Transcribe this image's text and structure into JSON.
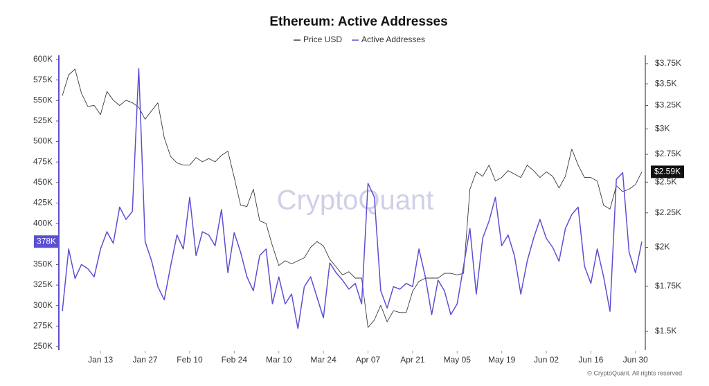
{
  "chart_data": {
    "type": "line",
    "title": "Ethereum: Active Addresses",
    "watermark": "CryptoQuant",
    "source": "© CryptoQuant. All rights reserved",
    "x": [
      "Jan 01",
      "Jan 03",
      "Jan 05",
      "Jan 07",
      "Jan 09",
      "Jan 11",
      "Jan 13",
      "Jan 15",
      "Jan 17",
      "Jan 19",
      "Jan 21",
      "Jan 23",
      "Jan 25",
      "Jan 27",
      "Jan 29",
      "Jan 31",
      "Feb 02",
      "Feb 04",
      "Feb 06",
      "Feb 08",
      "Feb 10",
      "Feb 12",
      "Feb 14",
      "Feb 16",
      "Feb 18",
      "Feb 20",
      "Feb 22",
      "Feb 24",
      "Feb 26",
      "Feb 28",
      "Mar 02",
      "Mar 04",
      "Mar 06",
      "Mar 08",
      "Mar 10",
      "Mar 12",
      "Mar 14",
      "Mar 16",
      "Mar 18",
      "Mar 20",
      "Mar 22",
      "Mar 24",
      "Mar 26",
      "Mar 28",
      "Mar 30",
      "Apr 01",
      "Apr 03",
      "Apr 05",
      "Apr 07",
      "Apr 09",
      "Apr 11",
      "Apr 13",
      "Apr 15",
      "Apr 17",
      "Apr 19",
      "Apr 21",
      "Apr 23",
      "Apr 25",
      "Apr 27",
      "Apr 29",
      "May 01",
      "May 03",
      "May 05",
      "May 07",
      "May 09",
      "May 11",
      "May 13",
      "May 15",
      "May 17",
      "May 19",
      "May 21",
      "May 23",
      "May 25",
      "May 27",
      "May 29",
      "May 31",
      "Jun 02",
      "Jun 04",
      "Jun 06",
      "Jun 08",
      "Jun 10",
      "Jun 12",
      "Jun 14",
      "Jun 16",
      "Jun 18",
      "Jun 20",
      "Jun 22",
      "Jun 24",
      "Jun 26",
      "Jun 28",
      "Jun 30",
      "Jul 02"
    ],
    "xticks": [
      "Jan 13",
      "Jan 27",
      "Feb 10",
      "Feb 24",
      "Mar 10",
      "Mar 24",
      "Apr 07",
      "Apr 21",
      "May 05",
      "May 19",
      "Jun 02",
      "Jun 16",
      "Jun 30"
    ],
    "series": [
      {
        "name": "Price USD",
        "color": "#3a3a3a",
        "axis": "y2",
        "values": [
          3360,
          3610,
          3680,
          3390,
          3240,
          3250,
          3150,
          3410,
          3310,
          3250,
          3310,
          3280,
          3230,
          3100,
          3190,
          3280,
          2910,
          2730,
          2670,
          2650,
          2650,
          2720,
          2680,
          2710,
          2680,
          2740,
          2780,
          2540,
          2310,
          2300,
          2440,
          2190,
          2170,
          2010,
          1880,
          1910,
          1890,
          1910,
          1930,
          2000,
          2040,
          2010,
          1920,
          1870,
          1820,
          1840,
          1800,
          1800,
          1520,
          1560,
          1640,
          1550,
          1610,
          1600,
          1600,
          1720,
          1780,
          1800,
          1800,
          1800,
          1830,
          1830,
          1820,
          1830,
          2440,
          2590,
          2550,
          2650,
          2510,
          2540,
          2600,
          2570,
          2540,
          2650,
          2600,
          2540,
          2590,
          2550,
          2450,
          2550,
          2800,
          2650,
          2540,
          2540,
          2510,
          2310,
          2280,
          2470,
          2420,
          2440,
          2480,
          2590
        ],
        "value_labels": [
          null,
          null,
          null,
          null,
          null,
          null,
          null,
          null,
          null,
          null,
          null,
          null,
          null,
          null,
          null,
          null,
          null,
          null,
          null,
          null,
          null,
          null,
          null,
          null,
          null,
          null,
          null,
          null,
          null,
          null,
          null,
          null,
          null,
          null,
          null,
          null,
          null,
          null,
          null,
          null,
          null,
          null,
          null,
          null,
          null,
          null,
          null,
          null,
          null,
          null,
          null,
          null,
          null,
          null,
          null,
          null,
          null,
          null,
          null,
          null,
          null,
          null,
          null,
          null,
          null,
          null,
          null,
          null,
          null,
          null,
          null,
          null,
          null,
          null,
          null,
          null,
          null,
          null,
          null,
          null,
          null,
          null,
          null,
          null,
          null,
          null,
          null,
          null,
          null,
          null,
          null,
          "$2.59K"
        ]
      },
      {
        "name": "Active Addresses",
        "color": "#5b4fd4",
        "axis": "y",
        "values": [
          293000,
          369000,
          333000,
          350000,
          345000,
          335000,
          369000,
          390000,
          376000,
          420000,
          405000,
          415000,
          589000,
          378000,
          355000,
          323000,
          307000,
          348000,
          386000,
          369000,
          432000,
          361000,
          390000,
          386000,
          373000,
          417000,
          340000,
          389000,
          365000,
          335000,
          318000,
          361000,
          369000,
          302000,
          335000,
          302000,
          314000,
          272000,
          323000,
          335000,
          310000,
          285000,
          352000,
          340000,
          331000,
          320000,
          327000,
          302000,
          449000,
          432000,
          318000,
          297000,
          323000,
          320000,
          327000,
          323000,
          369000,
          335000,
          289000,
          331000,
          318000,
          289000,
          302000,
          348000,
          394000,
          314000,
          382000,
          403000,
          432000,
          373000,
          386000,
          361000,
          314000,
          354000,
          382000,
          405000,
          382000,
          371000,
          354000,
          394000,
          411000,
          420000,
          348000,
          327000,
          369000,
          335000,
          293000,
          454000,
          462000,
          365000,
          340000,
          378000
        ],
        "value_labels": [
          null,
          null,
          null,
          null,
          null,
          null,
          null,
          null,
          null,
          null,
          null,
          null,
          null,
          null,
          null,
          null,
          null,
          null,
          null,
          null,
          null,
          null,
          null,
          null,
          null,
          null,
          null,
          null,
          null,
          null,
          null,
          null,
          null,
          null,
          null,
          null,
          null,
          null,
          null,
          null,
          null,
          null,
          null,
          null,
          null,
          null,
          null,
          null,
          null,
          null,
          null,
          null,
          null,
          null,
          null,
          null,
          null,
          null,
          null,
          null,
          null,
          null,
          null,
          null,
          null,
          null,
          null,
          null,
          null,
          null,
          null,
          null,
          null,
          null,
          null,
          null,
          null,
          null,
          null,
          null,
          null,
          null,
          null,
          null,
          null,
          null,
          null,
          null,
          null,
          null,
          null,
          "378K"
        ]
      }
    ],
    "ylim": [
      250000,
      600000
    ],
    "yticks": [
      {
        "value": 250000,
        "label": "250K"
      },
      {
        "value": 275000,
        "label": "275K"
      },
      {
        "value": 300000,
        "label": "300K"
      },
      {
        "value": 325000,
        "label": "325K"
      },
      {
        "value": 350000,
        "label": "350K"
      },
      {
        "value": 375000,
        "label": "375K"
      },
      {
        "value": 400000,
        "label": "400K"
      },
      {
        "value": 425000,
        "label": "425K"
      },
      {
        "value": 450000,
        "label": "450K"
      },
      {
        "value": 475000,
        "label": "475K"
      },
      {
        "value": 500000,
        "label": "500K"
      },
      {
        "value": 525000,
        "label": "525K"
      },
      {
        "value": 550000,
        "label": "550K"
      },
      {
        "value": 575000,
        "label": "575K"
      },
      {
        "value": 600000,
        "label": "600K"
      }
    ],
    "y2lim": [
      1424,
      3804
    ],
    "y2_log": true,
    "y2ticks": [
      {
        "value": 1500,
        "label": "$1.5K"
      },
      {
        "value": 1750,
        "label": "$1.75K"
      },
      {
        "value": 2000,
        "label": "$2K"
      },
      {
        "value": 2250,
        "label": "$2.25K"
      },
      {
        "value": 2500,
        "label": "$2.5K"
      },
      {
        "value": 2750,
        "label": "$2.75K"
      },
      {
        "value": 3000,
        "label": "$3K"
      },
      {
        "value": 3250,
        "label": "$3.25K"
      },
      {
        "value": 3500,
        "label": "$3.5K"
      },
      {
        "value": 3750,
        "label": "$3.75K"
      }
    ],
    "grid": false,
    "legend": "top"
  }
}
